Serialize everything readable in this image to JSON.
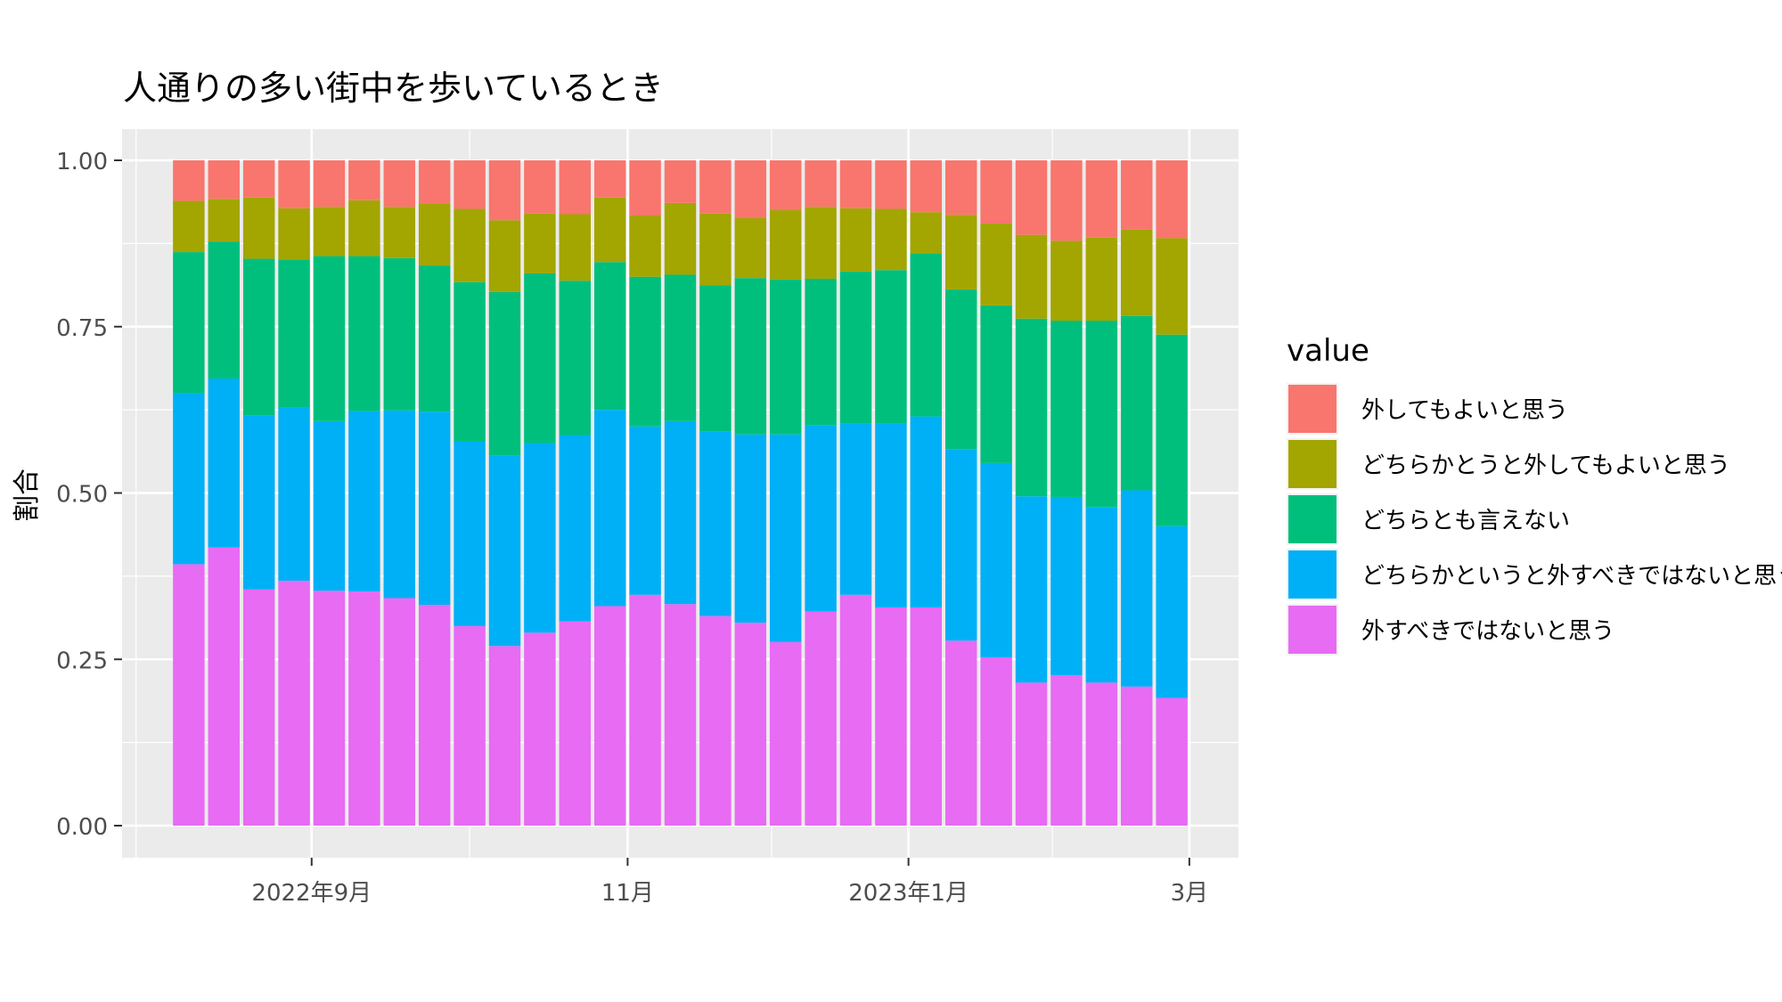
{
  "chart_data": {
    "type": "bar",
    "stacked": true,
    "title": "人通りの多い街中を歩いているとき",
    "xlabel": "",
    "ylabel": "割合",
    "ylim": [
      0,
      1
    ],
    "y_ticks": [
      "0.00",
      "0.25",
      "0.50",
      "0.75",
      "1.00"
    ],
    "x_ticks": [
      "2022年9月",
      "11月",
      "2023年1月",
      "3月"
    ],
    "x_tick_positions": [
      3.5,
      12.5,
      20.5,
      28.5
    ],
    "x_major_grid_positions": [
      3.5,
      12.5,
      20.5,
      28.5
    ],
    "x_minor_grid_positions": [
      -1.5,
      8,
      16.6,
      24.6
    ],
    "x_range": [
      -1.9,
      29.9
    ],
    "legend": {
      "title": "value",
      "position": "right"
    },
    "grid": true,
    "background": "#EBEBEB",
    "n_bars": 29,
    "series": [
      {
        "name": "外すべきではないと思う",
        "color": "#E76BF3",
        "values": [
          0.393,
          0.418,
          0.355,
          0.368,
          0.353,
          0.352,
          0.342,
          0.332,
          0.3,
          0.27,
          0.29,
          0.307,
          0.33,
          0.347,
          0.333,
          0.315,
          0.305,
          0.276,
          0.322,
          0.347,
          0.328,
          0.328,
          0.278,
          0.253,
          0.215,
          0.226,
          0.215,
          0.209,
          0.192
        ]
      },
      {
        "name": "どちらかというと外すべきではないと思う",
        "color": "#00B0F6",
        "values": [
          0.257,
          0.254,
          0.262,
          0.26,
          0.255,
          0.271,
          0.282,
          0.29,
          0.277,
          0.286,
          0.285,
          0.28,
          0.295,
          0.253,
          0.275,
          0.277,
          0.283,
          0.312,
          0.28,
          0.258,
          0.277,
          0.287,
          0.288,
          0.292,
          0.28,
          0.268,
          0.264,
          0.295,
          0.258
        ]
      },
      {
        "name": "どちらとも言えない",
        "color": "#00BF7D",
        "values": [
          0.212,
          0.206,
          0.235,
          0.223,
          0.248,
          0.233,
          0.229,
          0.22,
          0.24,
          0.246,
          0.255,
          0.232,
          0.222,
          0.225,
          0.22,
          0.22,
          0.235,
          0.233,
          0.22,
          0.228,
          0.23,
          0.245,
          0.24,
          0.237,
          0.267,
          0.265,
          0.28,
          0.262,
          0.288
        ]
      },
      {
        "name": "どちらかとうと外してもよいと思う",
        "color": "#A3A500",
        "values": [
          0.077,
          0.064,
          0.092,
          0.077,
          0.074,
          0.084,
          0.077,
          0.093,
          0.11,
          0.108,
          0.09,
          0.1,
          0.097,
          0.092,
          0.108,
          0.108,
          0.09,
          0.104,
          0.108,
          0.095,
          0.092,
          0.062,
          0.112,
          0.123,
          0.126,
          0.12,
          0.125,
          0.13,
          0.145
        ]
      },
      {
        "name": "外してもよいと思う",
        "color": "#F8766D",
        "values": [
          0.061,
          0.058,
          0.056,
          0.072,
          0.07,
          0.06,
          0.07,
          0.065,
          0.073,
          0.09,
          0.08,
          0.081,
          0.056,
          0.083,
          0.064,
          0.08,
          0.087,
          0.075,
          0.07,
          0.072,
          0.073,
          0.078,
          0.082,
          0.095,
          0.112,
          0.121,
          0.116,
          0.104,
          0.117
        ]
      }
    ],
    "legend_order": [
      "外してもよいと思う",
      "どちらかとうと外してもよいと思う",
      "どちらとも言えない",
      "どちらかというと外すべきではないと思う",
      "外すべきではないと思う"
    ]
  }
}
